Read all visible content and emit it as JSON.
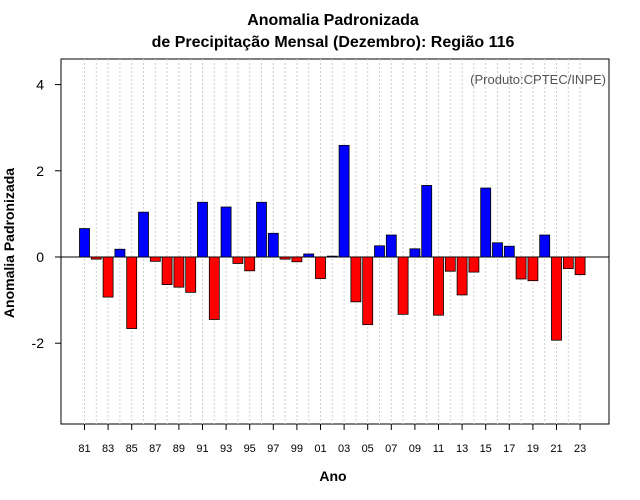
{
  "chart_data": {
    "type": "bar",
    "title_line1": "Anomalia Padronizada",
    "title_line2": "de Precipitação Mensal (Dezembro): Região 116",
    "source": "(Produto:CPTEC/INPE)",
    "xlabel": "Ano",
    "ylabel": "Anomalia Padronizada",
    "ylim": [
      -4,
      4.6
    ],
    "yticks": [
      -2,
      0,
      2,
      4
    ],
    "ytick_labels": [
      "-2",
      "0",
      "2",
      "4"
    ],
    "positive_color": "#0000ff",
    "negative_color": "#ff0000",
    "categories": [
      "81",
      "82",
      "83",
      "84",
      "85",
      "86",
      "87",
      "88",
      "89",
      "90",
      "91",
      "92",
      "93",
      "94",
      "95",
      "96",
      "97",
      "98",
      "99",
      "00",
      "01",
      "02",
      "03",
      "04",
      "05",
      "06",
      "07",
      "08",
      "09",
      "10",
      "11",
      "12",
      "13",
      "14",
      "15",
      "16",
      "17",
      "18",
      "19",
      "20",
      "21",
      "22",
      "23"
    ],
    "xtick_labels": [
      "81",
      "83",
      "85",
      "87",
      "89",
      "91",
      "93",
      "95",
      "97",
      "99",
      "01",
      "03",
      "05",
      "07",
      "09",
      "11",
      "13",
      "15",
      "17",
      "19",
      "21",
      "23"
    ],
    "values": [
      0.66,
      -0.05,
      -0.93,
      0.18,
      -1.66,
      1.04,
      -0.1,
      -0.64,
      -0.7,
      -0.82,
      1.27,
      -1.45,
      1.16,
      -0.15,
      -0.32,
      1.27,
      0.55,
      -0.05,
      -0.11,
      0.07,
      -0.5,
      0.02,
      2.59,
      -1.04,
      -1.57,
      0.26,
      0.51,
      -1.33,
      0.19,
      1.66,
      -1.35,
      -0.33,
      -0.88,
      -0.35,
      1.6,
      0.33,
      0.25,
      -0.51,
      -0.55,
      0.51,
      -1.93,
      -0.27,
      -0.41
    ]
  }
}
